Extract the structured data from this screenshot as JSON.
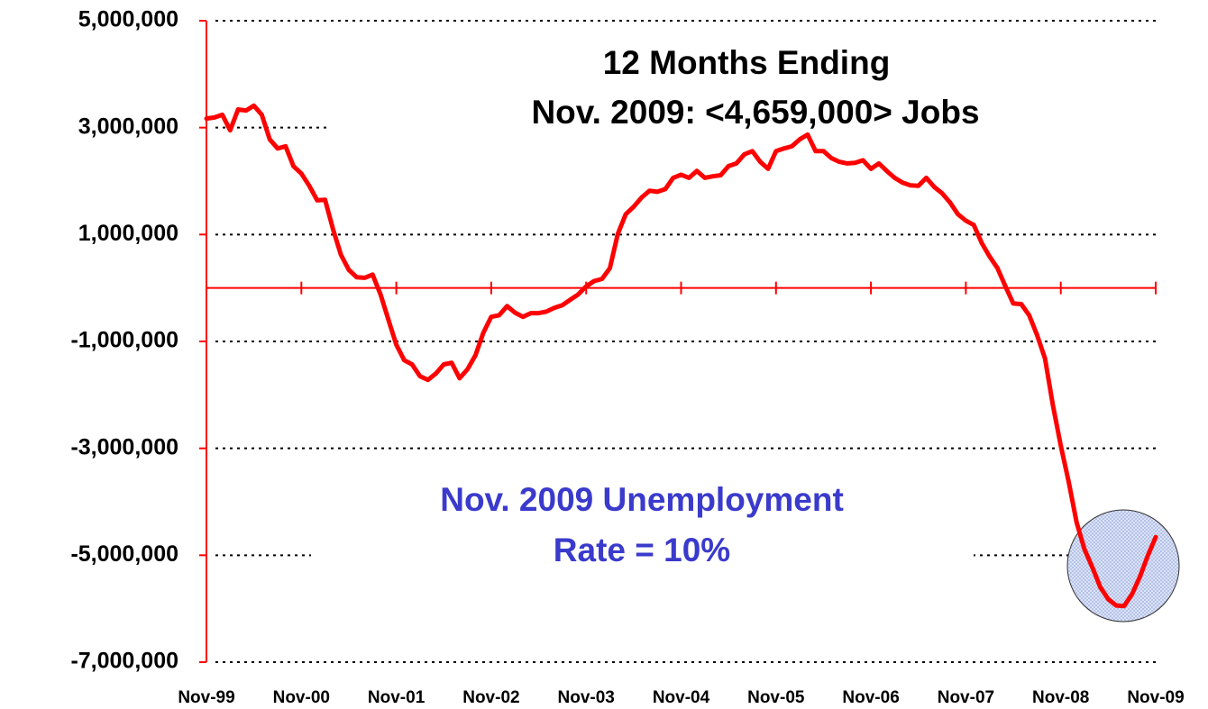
{
  "chart_data": {
    "type": "line",
    "annotations": [
      "12 Months Ending",
      "Nov. 2009: <4,659,000> Jobs"
    ],
    "notes": [
      "Nov. 2009 Unemployment",
      "Rate = 10%"
    ],
    "color": "#ff0000",
    "categories": [
      "Nov-99",
      null,
      null,
      null,
      null,
      null,
      null,
      null,
      null,
      null,
      null,
      null,
      "Nov-00",
      null,
      null,
      null,
      null,
      null,
      null,
      null,
      null,
      null,
      null,
      null,
      "Nov-01",
      null,
      null,
      null,
      null,
      null,
      null,
      null,
      null,
      null,
      null,
      null,
      "Nov-02",
      null,
      null,
      null,
      null,
      null,
      null,
      null,
      null,
      null,
      null,
      null,
      "Nov-03",
      null,
      null,
      null,
      null,
      null,
      null,
      null,
      null,
      null,
      null,
      null,
      "Nov-04",
      null,
      null,
      null,
      null,
      null,
      null,
      null,
      null,
      null,
      null,
      null,
      "Nov-05",
      null,
      null,
      null,
      null,
      null,
      null,
      null,
      null,
      null,
      null,
      null,
      "Nov-06",
      null,
      null,
      null,
      null,
      null,
      null,
      null,
      null,
      null,
      null,
      null,
      "Nov-07",
      null,
      null,
      null,
      null,
      null,
      null,
      null,
      null,
      null,
      null,
      null,
      "Nov-08",
      null,
      null,
      null,
      null,
      null,
      null,
      null,
      null,
      null,
      null,
      null,
      "Nov-09"
    ],
    "values": [
      3170000,
      3190000,
      3240000,
      2950000,
      3340000,
      3320000,
      3410000,
      3240000,
      2780000,
      2610000,
      2650000,
      2280000,
      2140000,
      1910000,
      1640000,
      1650000,
      1100000,
      620000,
      340000,
      200000,
      190000,
      250000,
      -120000,
      -590000,
      -1060000,
      -1350000,
      -1430000,
      -1650000,
      -1720000,
      -1600000,
      -1430000,
      -1400000,
      -1690000,
      -1520000,
      -1260000,
      -840000,
      -540000,
      -510000,
      -340000,
      -460000,
      -540000,
      -470000,
      -470000,
      -440000,
      -370000,
      -320000,
      -220000,
      -120000,
      30000,
      130000,
      170000,
      370000,
      1010000,
      1380000,
      1520000,
      1690000,
      1820000,
      1800000,
      1850000,
      2060000,
      2120000,
      2060000,
      2190000,
      2060000,
      2090000,
      2110000,
      2280000,
      2330000,
      2500000,
      2560000,
      2360000,
      2230000,
      2560000,
      2610000,
      2650000,
      2780000,
      2870000,
      2560000,
      2560000,
      2430000,
      2360000,
      2330000,
      2340000,
      2390000,
      2230000,
      2330000,
      2190000,
      2060000,
      1970000,
      1920000,
      1910000,
      2060000,
      1890000,
      1770000,
      1600000,
      1380000,
      1260000,
      1180000,
      840000,
      590000,
      370000,
      30000,
      -290000,
      -300000,
      -510000,
      -880000,
      -1320000,
      -2190000,
      -2950000,
      -3630000,
      -4390000,
      -4890000,
      -5230000,
      -5600000,
      -5820000,
      -5940000,
      -5950000,
      -5730000,
      -5400000,
      -5010000,
      -4660000
    ],
    "ylim": [
      -7000000,
      5000000
    ],
    "yticks": [
      {
        "value": 5000000,
        "label": "5,000,000"
      },
      {
        "value": 3000000,
        "label": "3,000,000"
      },
      {
        "value": 1000000,
        "label": "1,000,000"
      },
      {
        "value": -1000000,
        "label": "-1,000,000"
      },
      {
        "value": -3000000,
        "label": "-3,000,000"
      },
      {
        "value": -5000000,
        "label": "-5,000,000"
      },
      {
        "value": -7000000,
        "label": "-7,000,000"
      }
    ],
    "grid": true
  }
}
